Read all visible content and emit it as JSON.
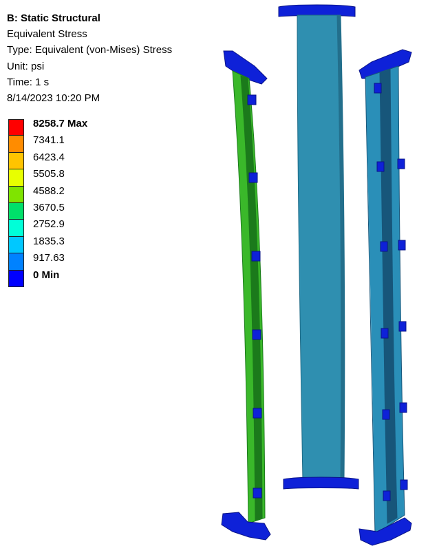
{
  "info": {
    "title": "B: Static Structural",
    "result": "Equivalent Stress",
    "type": "Type: Equivalent (von-Mises) Stress",
    "unit": "Unit: psi",
    "time": "Time: 1 s",
    "date": "8/14/2023 10:20 PM"
  },
  "legend": {
    "labels": [
      "8258.7 Max",
      "7341.1",
      "6423.4",
      "5505.8",
      "4588.2",
      "3670.5",
      "2752.9",
      "1835.3",
      "917.63",
      "0 Min"
    ],
    "colors": [
      "#ff0000",
      "#ff8c00",
      "#ffc400",
      "#e8ff00",
      "#7fe400",
      "#00e06a",
      "#00ffd8",
      "#00c8ff",
      "#0082ff",
      "#0000ff"
    ]
  },
  "parts": {
    "left_rail_color": "#3ab82a",
    "left_rail_dark": "#1b7a1b",
    "center_web_color": "#2f8fb0",
    "right_rail_color": "#2a8fb8",
    "right_rail_dark": "#17567a",
    "fixture_color": "#0e21d8",
    "fixture_dark": "#0a1488"
  }
}
